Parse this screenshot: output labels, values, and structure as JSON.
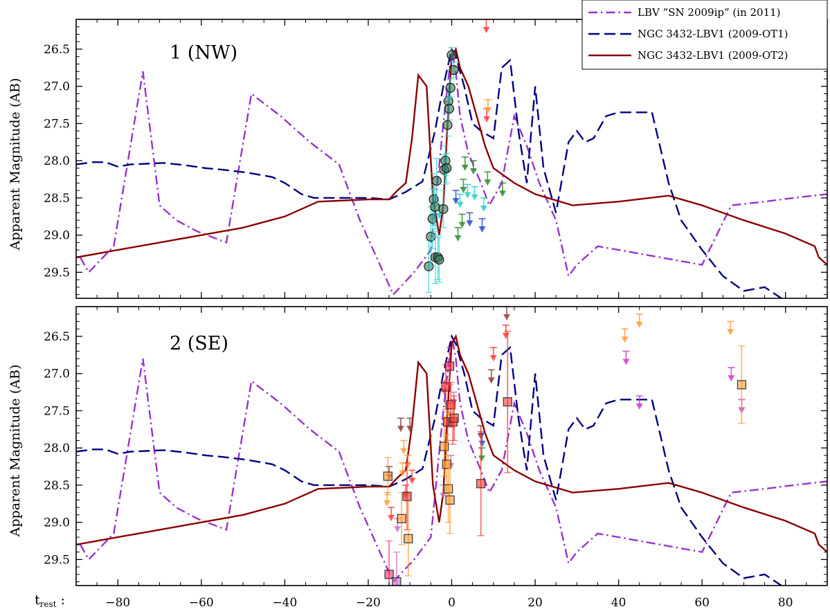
{
  "chart_data": {
    "type": "line",
    "ylabel": "Apparent Magnitude (AB)",
    "xlabel_prefix": "t",
    "xlabel_subscript": "rest",
    "xlabel_suffix": " :",
    "xlim": [
      -90,
      90
    ],
    "ylim": [
      26.1,
      29.85
    ],
    "y_inverted": true,
    "grid": false,
    "legend_position": "top-right",
    "xticks": [
      -80,
      -60,
      -40,
      -20,
      0,
      20,
      40,
      60,
      80
    ],
    "xtick_labels": [
      "−80",
      "−60",
      "−40",
      "−20",
      "0",
      "20",
      "40",
      "60",
      "80"
    ],
    "yticks": [
      26.5,
      27.0,
      27.5,
      28.0,
      28.5,
      29.0,
      29.5
    ],
    "ytick_labels": [
      "26.5",
      "27.0",
      "27.5",
      "28.0",
      "28.5",
      "29.0",
      "29.5"
    ],
    "legend": [
      {
        "label": "LBV ”SN 2009ip” (in 2011)",
        "color": "#9932cc",
        "dash": "dashdot"
      },
      {
        "label": "NGC 3432-LBV1 (2009-OT1)",
        "color": "#00007f",
        "dash": "dashed"
      },
      {
        "label": "NGC 3432-LBV1 (2009-OT2)",
        "color": "#8b0000",
        "dash": "solid"
      }
    ],
    "series": [
      {
        "name": "LBV ”SN 2009ip” (in 2011)",
        "color": "#9932cc",
        "dash": "dashdot",
        "x": [
          -89,
          -87,
          -81,
          -74,
          -70,
          -66,
          -61,
          -54,
          -48,
          -41,
          -34,
          -27,
          -22,
          -14,
          -9,
          -5,
          -2,
          0,
          1,
          2,
          4,
          7,
          9,
          12,
          15,
          18,
          21,
          25,
          28,
          30,
          35,
          40,
          45,
          50,
          55,
          60,
          67,
          75,
          82,
          90
        ],
        "y": [
          29.3,
          29.5,
          29.15,
          26.8,
          28.6,
          28.8,
          28.95,
          29.1,
          27.1,
          27.4,
          27.75,
          28.05,
          28.8,
          29.8,
          29.5,
          29.2,
          27.5,
          26.5,
          26.8,
          27.4,
          27.9,
          28.3,
          28.6,
          28.3,
          27.4,
          27.8,
          28.3,
          28.8,
          29.55,
          29.4,
          29.15,
          29.2,
          29.25,
          29.3,
          29.35,
          29.4,
          28.6,
          28.55,
          28.5,
          28.45
        ]
      },
      {
        "name": "NGC 3432-LBV1 (2009-OT1)",
        "color": "#00007f",
        "dash": "dashed",
        "x": [
          -90,
          -86,
          -83,
          -80,
          -77,
          -73,
          -69,
          -64,
          -59,
          -55,
          -49,
          -43,
          -40,
          -36,
          -33,
          -26,
          -20,
          -15,
          -11,
          -7,
          -4,
          -2,
          0,
          1,
          3,
          5,
          7,
          10,
          12,
          14,
          16,
          18,
          20,
          22,
          25,
          28,
          30,
          32,
          34,
          37,
          40,
          44,
          48,
          52,
          55,
          60,
          65,
          70,
          75,
          83,
          90
        ],
        "y": [
          28.05,
          28.02,
          28.02,
          28.08,
          28.05,
          28.04,
          28.03,
          28.06,
          28.1,
          28.12,
          28.16,
          28.22,
          28.3,
          28.45,
          28.5,
          28.5,
          28.5,
          28.52,
          28.42,
          28.28,
          27.6,
          27.0,
          26.5,
          26.6,
          27.0,
          27.5,
          27.6,
          27.7,
          26.75,
          26.65,
          27.6,
          28.3,
          27.0,
          28.1,
          28.7,
          27.75,
          27.6,
          27.75,
          27.7,
          27.4,
          27.35,
          27.35,
          27.35,
          28.3,
          28.8,
          29.2,
          29.55,
          29.75,
          29.7,
          30.0,
          30.2
        ]
      },
      {
        "name": "NGC 3432-LBV1 (2009-OT2)",
        "color": "#8b0000",
        "dash": "solid",
        "x": [
          -90,
          -80,
          -70,
          -60,
          -50,
          -40,
          -32,
          -20,
          -15,
          -13,
          -11,
          -9.5,
          -8,
          -6,
          -5,
          -4.5,
          -3,
          -2,
          -1,
          0,
          1,
          2,
          4,
          6,
          8,
          10,
          15,
          20,
          29,
          40,
          52,
          60,
          70,
          80,
          87,
          88,
          90
        ],
        "y": [
          29.3,
          29.2,
          29.1,
          29.0,
          28.9,
          28.75,
          28.55,
          28.52,
          28.52,
          28.4,
          28.3,
          27.7,
          26.85,
          27.0,
          28.0,
          28.5,
          29.0,
          28.6,
          27.5,
          26.6,
          26.5,
          26.75,
          27.0,
          27.4,
          27.8,
          28.1,
          28.3,
          28.45,
          28.6,
          28.55,
          28.47,
          28.6,
          28.8,
          28.98,
          29.15,
          29.3,
          29.4
        ]
      }
    ],
    "panels": [
      {
        "title": "1 (NW)",
        "circles": [
          {
            "x": -5.5,
            "y": 29.42,
            "err": 0.35
          },
          {
            "x": -5.0,
            "y": 29.02,
            "err": 0.4
          },
          {
            "x": -4.6,
            "y": 28.78,
            "err": 0.4
          },
          {
            "x": -4.3,
            "y": 28.52,
            "err": 0.35
          },
          {
            "x": -4.0,
            "y": 28.62,
            "err": 0.3
          },
          {
            "x": -3.9,
            "y": 29.3,
            "err": 0.35
          },
          {
            "x": -3.6,
            "y": 28.27,
            "err": 0.3
          },
          {
            "x": -3.3,
            "y": 29.3,
            "err": 0.3
          },
          {
            "x": -3.0,
            "y": 29.33,
            "err": 0.3
          },
          {
            "x": -2.0,
            "y": 28.65,
            "err": 0.25
          },
          {
            "x": -1.8,
            "y": 28.12,
            "err": 0.2
          },
          {
            "x": -1.5,
            "y": 28.0,
            "err": 0.2
          },
          {
            "x": -1.2,
            "y": 28.1,
            "err": 0.2
          },
          {
            "x": -1.0,
            "y": 27.52,
            "err": 0.15
          },
          {
            "x": -0.8,
            "y": 27.2,
            "err": 0.15
          },
          {
            "x": -0.6,
            "y": 27.3,
            "err": 0.15
          },
          {
            "x": -0.3,
            "y": 27.02,
            "err": 0.12
          },
          {
            "x": 0.0,
            "y": 26.58,
            "err": 0.1
          },
          {
            "x": 0.5,
            "y": 26.78,
            "err": 0.1
          }
        ],
        "limits": [
          {
            "x": -3.0,
            "y": 28.6,
            "color": "#22cccc"
          },
          {
            "x": 2.0,
            "y": 28.45,
            "color": "#22cccc"
          },
          {
            "x": 3.8,
            "y": 28.32,
            "color": "#22cccc"
          },
          {
            "x": 5.5,
            "y": 28.35,
            "color": "#22cccc"
          },
          {
            "x": 7.7,
            "y": 28.5,
            "color": "#22cccc"
          },
          {
            "x": 2.8,
            "y": 28.25,
            "color": "#228822"
          },
          {
            "x": 3.2,
            "y": 27.95,
            "color": "#228822"
          },
          {
            "x": 1.5,
            "y": 28.9,
            "color": "#228822"
          },
          {
            "x": 5.2,
            "y": 28.0,
            "color": "#228822"
          },
          {
            "x": 8.6,
            "y": 28.15,
            "color": "#228822"
          },
          {
            "x": 12.2,
            "y": 28.3,
            "color": "#228822"
          },
          {
            "x": 2.5,
            "y": 28.72,
            "color": "#228822"
          },
          {
            "x": 4.3,
            "y": 28.7,
            "color": "#2244cc"
          },
          {
            "x": 7.3,
            "y": 28.78,
            "color": "#2244cc"
          },
          {
            "x": 1.0,
            "y": 28.4,
            "color": "#2244cc"
          },
          {
            "x": 8.3,
            "y": 26.1,
            "color": "#ff3333"
          },
          {
            "x": 8.4,
            "y": 27.3,
            "color": "#ff3333"
          },
          {
            "x": 8.7,
            "y": 27.18,
            "color": "#ff9933"
          }
        ]
      },
      {
        "title": "2 (SE)",
        "squares": [
          {
            "x": -15.3,
            "y": 28.38,
            "err": 0.25,
            "color": "#ff9933"
          },
          {
            "x": -15.0,
            "y": 29.7,
            "err": 0.45,
            "color": "#ff3366"
          },
          {
            "x": -13.2,
            "y": 29.8,
            "err": 0.4,
            "color": "#cc66cc"
          },
          {
            "x": -12.0,
            "y": 28.95,
            "err": 0.35,
            "color": "#ff9933"
          },
          {
            "x": -10.7,
            "y": 28.65,
            "err": 0.45,
            "color": "#ff3333"
          },
          {
            "x": -10.4,
            "y": 29.22,
            "err": 0.5,
            "color": "#ff9933"
          },
          {
            "x": -1.8,
            "y": 27.98,
            "err": 0.4,
            "color": "#ff9933"
          },
          {
            "x": -1.4,
            "y": 27.18,
            "err": 0.3,
            "color": "#ff3333"
          },
          {
            "x": -1.2,
            "y": 28.22,
            "err": 0.4,
            "color": "#ff9933"
          },
          {
            "x": -1.0,
            "y": 27.65,
            "err": 0.25,
            "color": "#ff3333"
          },
          {
            "x": -0.8,
            "y": 28.55,
            "err": 0.45,
            "color": "#ff9933"
          },
          {
            "x": -0.5,
            "y": 26.9,
            "err": 0.25,
            "color": "#ff3366"
          },
          {
            "x": -0.4,
            "y": 28.7,
            "err": 0.45,
            "color": "#ff9933"
          },
          {
            "x": -0.2,
            "y": 27.42,
            "err": 0.3,
            "color": "#ff3333"
          },
          {
            "x": 0.3,
            "y": 27.65,
            "err": 0.3,
            "color": "#ff3333"
          },
          {
            "x": 0.6,
            "y": 27.6,
            "err": 0.3,
            "color": "#ff3333"
          },
          {
            "x": 7.0,
            "y": 28.48,
            "err": 0.7,
            "color": "#ff3333"
          },
          {
            "x": 13.4,
            "y": 27.38,
            "err": 0.95,
            "color": "#ff3333"
          },
          {
            "x": 69.5,
            "y": 27.15,
            "err": 0.52,
            "color": "#ff9933"
          }
        ],
        "limits": [
          {
            "x": -15.5,
            "y": 28.6,
            "color": "#ff9933"
          },
          {
            "x": -15.0,
            "y": 28.25,
            "color": "#8b3333"
          },
          {
            "x": -14.5,
            "y": 28.8,
            "color": "#ff3333"
          },
          {
            "x": -13.0,
            "y": 28.95,
            "color": "#cc66cc"
          },
          {
            "x": -12.2,
            "y": 27.6,
            "color": "#8b3333"
          },
          {
            "x": -11.8,
            "y": 28.2,
            "color": "#ff9933"
          },
          {
            "x": -11.5,
            "y": 27.9,
            "color": "#ff9933"
          },
          {
            "x": -11.0,
            "y": 28.5,
            "color": "#ff3333"
          },
          {
            "x": -10.5,
            "y": 28.1,
            "color": "#ff9933"
          },
          {
            "x": -10.0,
            "y": 27.6,
            "color": "#8b3333"
          },
          {
            "x": -9.5,
            "y": 28.3,
            "color": "#ff3333"
          },
          {
            "x": -2.0,
            "y": 28.5,
            "color": "#cc66cc"
          },
          {
            "x": -1.8,
            "y": 27.1,
            "color": "#ff3333"
          },
          {
            "x": -0.8,
            "y": 27.4,
            "color": "#ff9933"
          },
          {
            "x": -0.2,
            "y": 28.1,
            "color": "#cc66cc"
          },
          {
            "x": 0.5,
            "y": 27.25,
            "color": "#cc66cc"
          },
          {
            "x": 7.2,
            "y": 28.0,
            "color": "#228822"
          },
          {
            "x": 7.3,
            "y": 27.8,
            "color": "#2244cc"
          },
          {
            "x": 7.0,
            "y": 27.7,
            "color": "#8b3333"
          },
          {
            "x": 10.0,
            "y": 26.65,
            "color": "#ff3333"
          },
          {
            "x": 9.5,
            "y": 26.95,
            "color": "#8b3333"
          },
          {
            "x": 13.0,
            "y": 26.35,
            "color": "#ff3333"
          },
          {
            "x": 13.2,
            "y": 26.1,
            "color": "#8b3333"
          },
          {
            "x": 41.5,
            "y": 26.4,
            "color": "#ff9933"
          },
          {
            "x": 41.8,
            "y": 26.7,
            "color": "#cc33cc"
          },
          {
            "x": 45.0,
            "y": 26.2,
            "color": "#ff9933"
          },
          {
            "x": 45.0,
            "y": 27.3,
            "color": "#cc33cc"
          },
          {
            "x": 66.8,
            "y": 26.3,
            "color": "#ff9933"
          },
          {
            "x": 67.0,
            "y": 26.92,
            "color": "#cc33cc"
          },
          {
            "x": 69.5,
            "y": 27.35,
            "color": "#cc33cc"
          }
        ]
      }
    ]
  }
}
